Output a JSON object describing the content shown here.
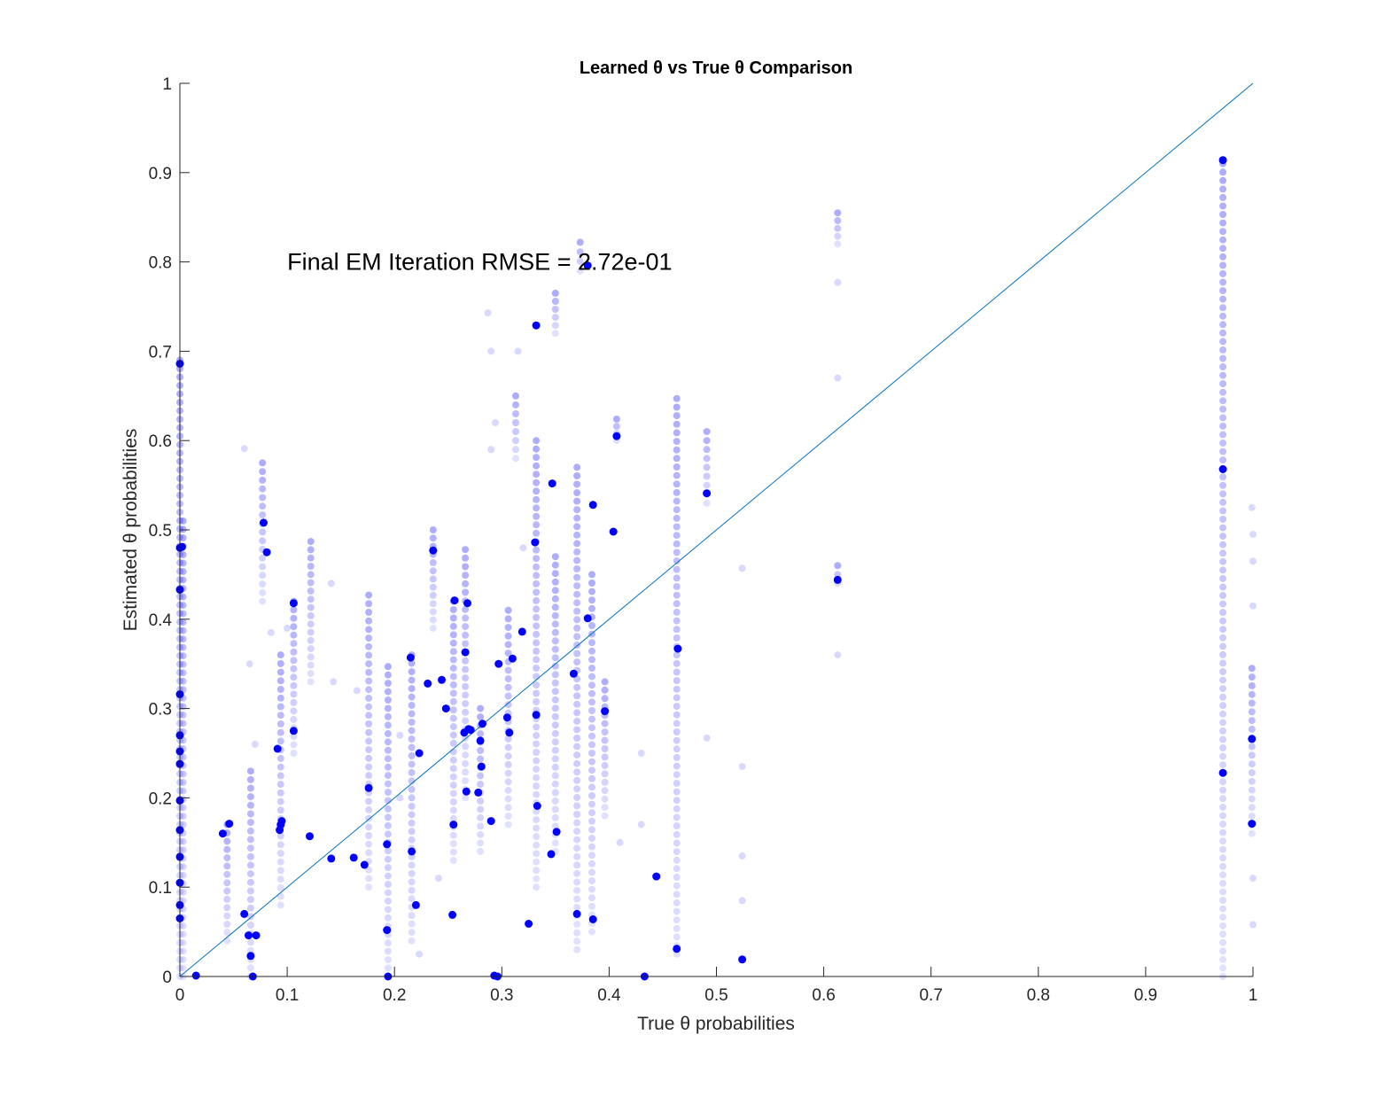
{
  "chart_data": {
    "type": "scatter",
    "title": "Learned θ vs True θ Comparison",
    "xlabel": "True θ probabilities",
    "ylabel": "Estimated θ probabilities",
    "xlim": [
      0,
      1
    ],
    "ylim": [
      0,
      1
    ],
    "xticks": [
      0,
      0.1,
      0.2,
      0.3,
      0.4,
      0.5,
      0.6,
      0.7,
      0.8,
      0.9,
      1
    ],
    "yticks": [
      0,
      0.1,
      0.2,
      0.3,
      0.4,
      0.5,
      0.6,
      0.7,
      0.8,
      0.9,
      1
    ],
    "xtick_labels": [
      "0",
      "0.1",
      "0.2",
      "0.3",
      "0.4",
      "0.5",
      "0.6",
      "0.7",
      "0.8",
      "0.9",
      "1"
    ],
    "ytick_labels": [
      "0",
      "0.1",
      "0.2",
      "0.3",
      "0.4",
      "0.5",
      "0.6",
      "0.7",
      "0.8",
      "0.9",
      "1"
    ],
    "grid": false,
    "reference_line": {
      "x": [
        0,
        1
      ],
      "y": [
        0,
        1
      ],
      "color": "#0072BD"
    },
    "annotation": {
      "text": "Final EM Iteration RMSE = 2.72e-01",
      "x": 0.1,
      "y": 0.8
    },
    "marker_color": "#0000ff",
    "final_points": {
      "x": [
        0.972,
        0.972,
        0.972,
        0.999,
        0.999,
        0.0,
        0.0,
        0.002,
        0.0,
        0.0,
        0.0,
        0.0,
        0.0,
        0.0,
        0.0,
        0.0,
        0.0,
        0.0,
        0.0,
        0.015,
        0.04,
        0.046,
        0.06,
        0.064,
        0.066,
        0.068,
        0.071,
        0.078,
        0.081,
        0.091,
        0.093,
        0.094,
        0.095,
        0.106,
        0.106,
        0.121,
        0.141,
        0.162,
        0.172,
        0.176,
        0.193,
        0.193,
        0.194,
        0.215,
        0.216,
        0.22,
        0.223,
        0.231,
        0.236,
        0.244,
        0.248,
        0.254,
        0.255,
        0.256,
        0.265,
        0.266,
        0.267,
        0.268,
        0.269,
        0.271,
        0.278,
        0.28,
        0.281,
        0.282,
        0.29,
        0.293,
        0.296,
        0.297,
        0.305,
        0.307,
        0.31,
        0.319,
        0.325,
        0.331,
        0.332,
        0.332,
        0.333,
        0.346,
        0.347,
        0.351,
        0.367,
        0.37,
        0.38,
        0.38,
        0.385,
        0.385,
        0.396,
        0.404,
        0.407,
        0.433,
        0.444,
        0.463,
        0.464,
        0.491,
        0.524,
        0.613
      ],
      "y": [
        0.914,
        0.568,
        0.228,
        0.266,
        0.171,
        0.686,
        0.48,
        0.481,
        0.433,
        0.316,
        0.27,
        0.252,
        0.238,
        0.197,
        0.164,
        0.134,
        0.105,
        0.08,
        0.065,
        0.001,
        0.16,
        0.171,
        0.07,
        0.046,
        0.023,
        0.0,
        0.046,
        0.508,
        0.475,
        0.255,
        0.164,
        0.17,
        0.174,
        0.418,
        0.275,
        0.157,
        0.132,
        0.133,
        0.125,
        0.211,
        0.148,
        0.052,
        0.0,
        0.357,
        0.14,
        0.08,
        0.25,
        0.328,
        0.477,
        0.332,
        0.3,
        0.069,
        0.17,
        0.421,
        0.273,
        0.363,
        0.207,
        0.418,
        0.277,
        0.276,
        0.206,
        0.264,
        0.235,
        0.283,
        0.174,
        0.001,
        0.0,
        0.35,
        0.29,
        0.273,
        0.356,
        0.386,
        0.059,
        0.486,
        0.729,
        0.293,
        0.191,
        0.137,
        0.552,
        0.162,
        0.339,
        0.07,
        0.796,
        0.401,
        0.528,
        0.064,
        0.297,
        0.498,
        0.605,
        0.0,
        0.112,
        0.031,
        0.367,
        0.541,
        0.019,
        0.444
      ]
    },
    "iteration_columns": [
      {
        "x": 0.0,
        "y_min": 0.0,
        "y_max": 0.69
      },
      {
        "x": 0.003,
        "y_min": 0.0,
        "y_max": 0.51
      },
      {
        "x": 0.044,
        "y_min": 0.04,
        "y_max": 0.17
      },
      {
        "x": 0.066,
        "y_min": 0.0,
        "y_max": 0.23
      },
      {
        "x": 0.077,
        "y_min": 0.42,
        "y_max": 0.575
      },
      {
        "x": 0.094,
        "y_min": 0.08,
        "y_max": 0.36
      },
      {
        "x": 0.106,
        "y_min": 0.25,
        "y_max": 0.42
      },
      {
        "x": 0.122,
        "y_min": 0.33,
        "y_max": 0.487
      },
      {
        "x": 0.176,
        "y_min": 0.1,
        "y_max": 0.427
      },
      {
        "x": 0.194,
        "y_min": 0.0,
        "y_max": 0.347
      },
      {
        "x": 0.216,
        "y_min": 0.04,
        "y_max": 0.36
      },
      {
        "x": 0.236,
        "y_min": 0.39,
        "y_max": 0.5
      },
      {
        "x": 0.255,
        "y_min": 0.13,
        "y_max": 0.42
      },
      {
        "x": 0.266,
        "y_min": 0.2,
        "y_max": 0.478
      },
      {
        "x": 0.28,
        "y_min": 0.14,
        "y_max": 0.3
      },
      {
        "x": 0.306,
        "y_min": 0.17,
        "y_max": 0.41
      },
      {
        "x": 0.313,
        "y_min": 0.58,
        "y_max": 0.65
      },
      {
        "x": 0.332,
        "y_min": 0.1,
        "y_max": 0.6
      },
      {
        "x": 0.35,
        "y_min": 0.14,
        "y_max": 0.47
      },
      {
        "x": 0.35,
        "y_min": 0.72,
        "y_max": 0.765
      },
      {
        "x": 0.37,
        "y_min": 0.03,
        "y_max": 0.57
      },
      {
        "x": 0.373,
        "y_min": 0.79,
        "y_max": 0.822
      },
      {
        "x": 0.384,
        "y_min": 0.05,
        "y_max": 0.45
      },
      {
        "x": 0.396,
        "y_min": 0.18,
        "y_max": 0.33
      },
      {
        "x": 0.407,
        "y_min": 0.6,
        "y_max": 0.624
      },
      {
        "x": 0.463,
        "y_min": 0.025,
        "y_max": 0.647
      },
      {
        "x": 0.491,
        "y_min": 0.53,
        "y_max": 0.61
      },
      {
        "x": 0.613,
        "y_min": 0.82,
        "y_max": 0.855
      },
      {
        "x": 0.613,
        "y_min": 0.44,
        "y_max": 0.46
      },
      {
        "x": 0.972,
        "y_min": 0.0,
        "y_max": 0.91
      },
      {
        "x": 0.999,
        "y_min": 0.16,
        "y_max": 0.345
      }
    ],
    "scattered_points": {
      "x": [
        0.06,
        0.065,
        0.07,
        0.085,
        0.1,
        0.141,
        0.143,
        0.165,
        0.205,
        0.205,
        0.223,
        0.241,
        0.287,
        0.29,
        0.294,
        0.29,
        0.315,
        0.32,
        0.41,
        0.43,
        0.43,
        0.491,
        0.524,
        0.524,
        0.524,
        0.524,
        0.613,
        0.613,
        0.613,
        0.999,
        1.0,
        1.0,
        1.0,
        1.0,
        1.0
      ],
      "y": [
        0.591,
        0.35,
        0.26,
        0.385,
        0.39,
        0.44,
        0.33,
        0.32,
        0.27,
        0.2,
        0.025,
        0.11,
        0.743,
        0.7,
        0.62,
        0.59,
        0.7,
        0.48,
        0.15,
        0.25,
        0.17,
        0.267,
        0.457,
        0.235,
        0.135,
        0.085,
        0.777,
        0.67,
        0.36,
        0.525,
        0.495,
        0.465,
        0.415,
        0.11,
        0.058
      ]
    }
  }
}
